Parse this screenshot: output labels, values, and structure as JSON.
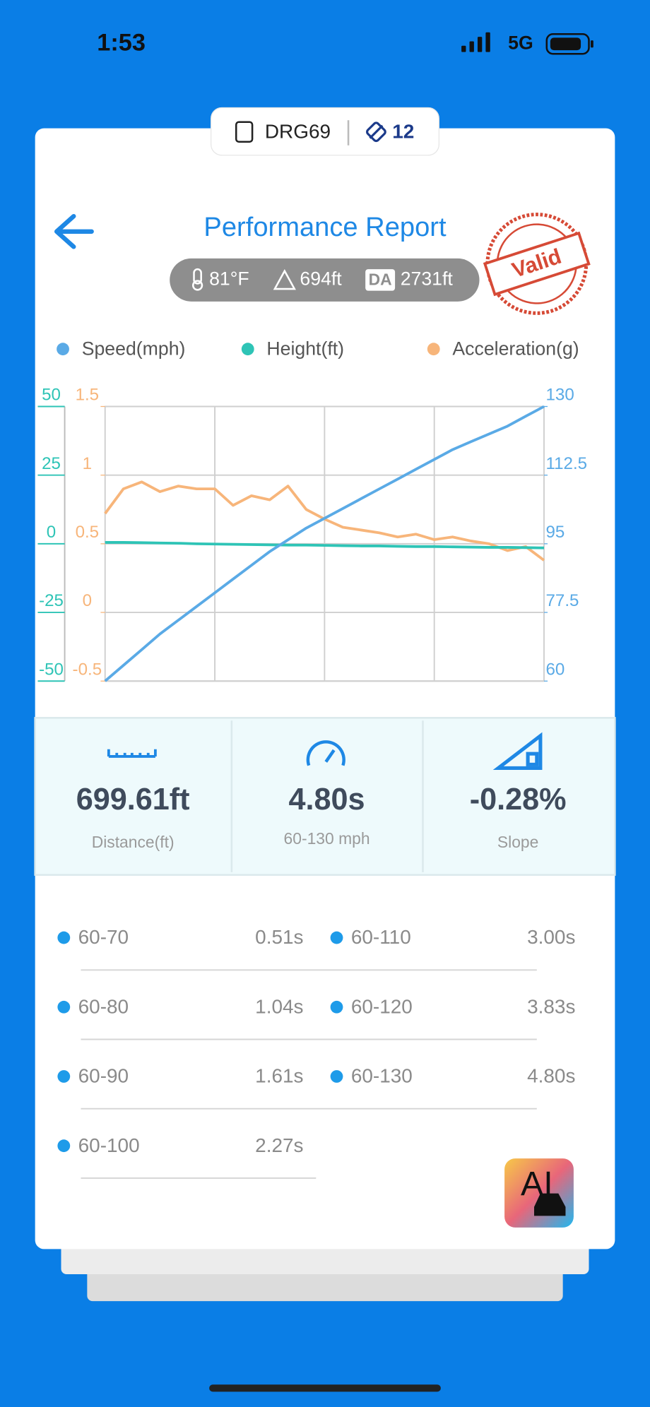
{
  "status": {
    "time": "1:53",
    "network": "5G"
  },
  "badge": {
    "plate": "DRG69",
    "count": "12"
  },
  "header": {
    "title": "Performance Report",
    "stamp": "Valid"
  },
  "conditions": {
    "temperature": "81°F",
    "altitude": "694ft",
    "da_label": "DA",
    "density_altitude": "2731ft"
  },
  "chart_data": {
    "type": "line",
    "ylim": [
      -50,
      50
    ],
    "yticks": [
      -50,
      -25,
      0,
      25,
      50
    ],
    "y3lim": [
      -0.5,
      1.5
    ],
    "y3ticks": [
      -0.5,
      0,
      0.5,
      1,
      1.5
    ],
    "y2lim": [
      60,
      130
    ],
    "y2ticks": [
      60,
      77.5,
      95,
      112.5,
      130
    ],
    "grid": true,
    "legend": "top",
    "series": [
      {
        "name": "Speed(mph)",
        "color": "#5aaae6",
        "axis": "y2",
        "values": [
          60,
          64,
          68,
          72,
          75.5,
          79,
          82.5,
          86,
          89.5,
          93,
          96,
          99,
          101.5,
          104,
          106.5,
          109,
          111.5,
          114,
          116.5,
          119,
          121,
          123,
          125,
          127.5,
          130
        ]
      },
      {
        "name": "Height(ft)",
        "color": "#2ec4b6",
        "axis": "y",
        "values": [
          0.5,
          0.5,
          0.4,
          0.3,
          0.2,
          0,
          -0.1,
          -0.2,
          -0.3,
          -0.4,
          -0.5,
          -0.5,
          -0.6,
          -0.7,
          -0.8,
          -0.8,
          -0.9,
          -1,
          -1,
          -1.1,
          -1.2,
          -1.3,
          -1.3,
          -1.4,
          -1.5
        ]
      },
      {
        "name": "Acceleration(g)",
        "color": "#f7b57a",
        "axis": "y3",
        "values": [
          0.72,
          0.9,
          0.95,
          0.88,
          0.92,
          0.9,
          0.9,
          0.78,
          0.85,
          0.82,
          0.92,
          0.75,
          0.68,
          0.62,
          0.6,
          0.58,
          0.55,
          0.57,
          0.53,
          0.55,
          0.52,
          0.5,
          0.45,
          0.48,
          0.38
        ]
      }
    ]
  },
  "stats": [
    {
      "value": "699.61ft",
      "label": "Distance(ft)"
    },
    {
      "value": "4.80s",
      "label": "60-130 mph"
    },
    {
      "value": "-0.28%",
      "label": "Slope"
    }
  ],
  "splits": [
    {
      "range": "60-70",
      "time": "0.51s"
    },
    {
      "range": "60-80",
      "time": "1.04s"
    },
    {
      "range": "60-90",
      "time": "1.61s"
    },
    {
      "range": "60-100",
      "time": "2.27s"
    },
    {
      "range": "60-110",
      "time": "3.00s"
    },
    {
      "range": "60-120",
      "time": "3.83s"
    },
    {
      "range": "60-130",
      "time": "4.80s"
    }
  ],
  "ai_button": "AI"
}
